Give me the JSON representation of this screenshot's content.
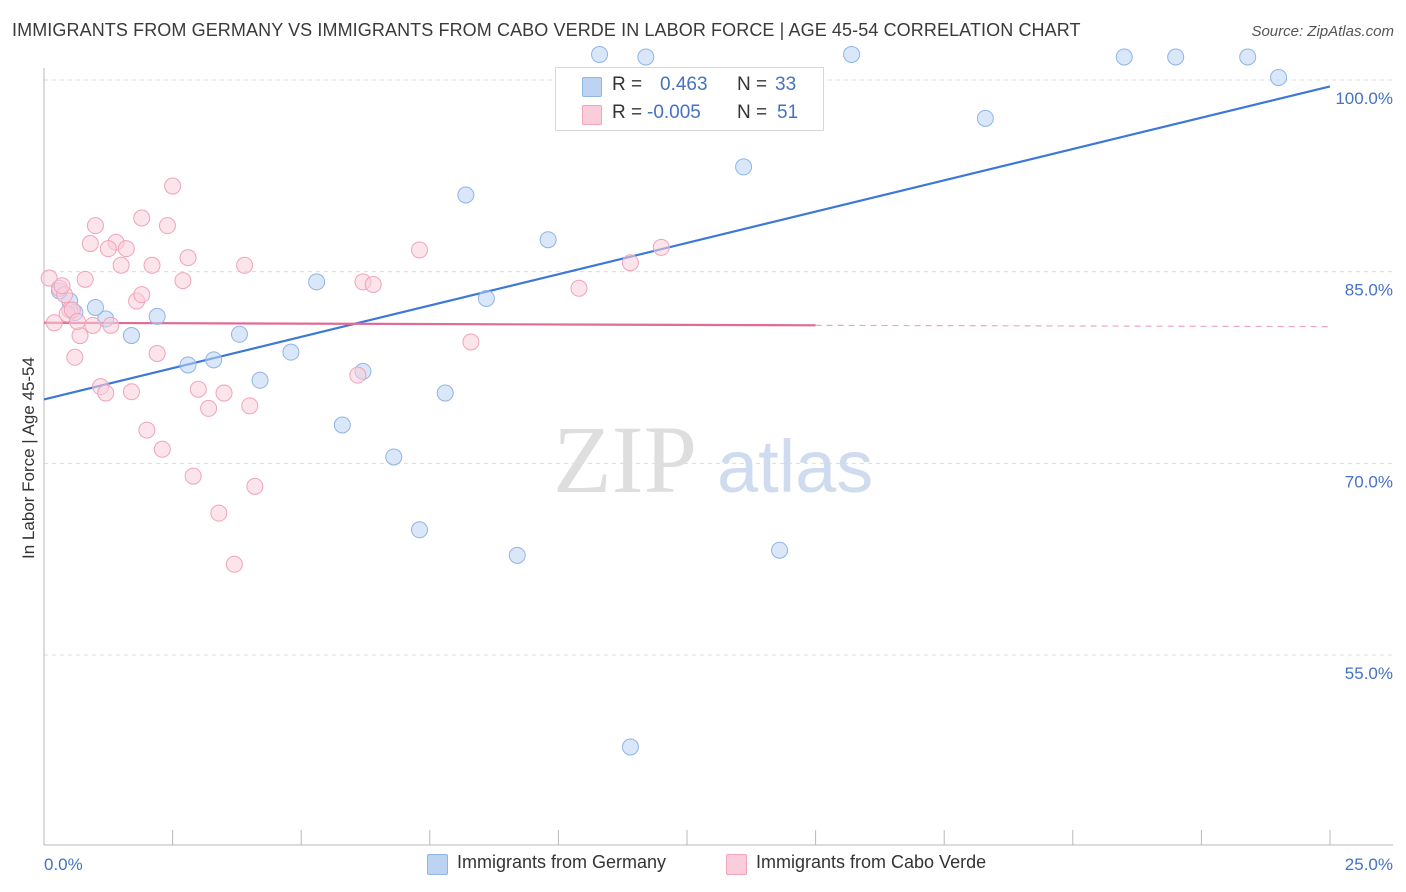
{
  "header": {
    "title": "IMMIGRANTS FROM GERMANY VS IMMIGRANTS FROM CABO VERDE IN LABOR FORCE | AGE 45-54 CORRELATION CHART",
    "source": "Source: ZipAtlas.com"
  },
  "watermark": {
    "zip": "ZIP",
    "atlas": "atlas"
  },
  "legend": {
    "r_label": "R =",
    "n_label": "N =",
    "series": [
      {
        "r_value": "0.463",
        "n_value": "33"
      },
      {
        "r_value": "-0.005",
        "n_value": "51"
      }
    ]
  },
  "chart_data": {
    "type": "scatter",
    "title": "IMMIGRANTS FROM GERMANY VS IMMIGRANTS FROM CABO VERDE IN LABOR FORCE | AGE 45-54 CORRELATION CHART",
    "xlabel": "",
    "ylabel": "In Labor Force | Age 45-54",
    "xlim": [
      0,
      25
    ],
    "ylim": [
      40,
      102
    ],
    "x_tick_labels": [
      "0.0%",
      "25.0%"
    ],
    "y_ticks": [
      55,
      70,
      85,
      100
    ],
    "y_tick_labels": [
      "55.0%",
      "70.0%",
      "85.0%",
      "100.0%"
    ],
    "grid": true,
    "series": [
      {
        "name": "Immigrants from Germany",
        "color": "#8fb4e8",
        "trend": {
          "x": [
            0,
            25
          ],
          "y": [
            75.0,
            99.5
          ],
          "color": "#3b78d8"
        },
        "points": [
          [
            0.5,
            82.7
          ],
          [
            1.2,
            81.3
          ],
          [
            1.7,
            80.0
          ],
          [
            2.2,
            81.5
          ],
          [
            2.8,
            77.7
          ],
          [
            3.3,
            78.1
          ],
          [
            3.8,
            80.1
          ],
          [
            4.2,
            76.5
          ],
          [
            4.8,
            78.7
          ],
          [
            5.3,
            84.2
          ],
          [
            5.8,
            73.0
          ],
          [
            6.2,
            77.2
          ],
          [
            6.8,
            70.5
          ],
          [
            7.3,
            64.8
          ],
          [
            7.8,
            75.5
          ],
          [
            8.2,
            91.0
          ],
          [
            8.6,
            82.9
          ],
          [
            9.2,
            62.8
          ],
          [
            9.8,
            87.5
          ],
          [
            11.4,
            47.8
          ],
          [
            10.8,
            102.0
          ],
          [
            11.7,
            101.8
          ],
          [
            13.6,
            93.2
          ],
          [
            14.3,
            63.2
          ],
          [
            15.7,
            102.0
          ],
          [
            18.3,
            97.0
          ],
          [
            21.0,
            101.8
          ],
          [
            22.0,
            101.8
          ],
          [
            23.4,
            101.8
          ],
          [
            24.0,
            100.2
          ],
          [
            0.3,
            83.5
          ],
          [
            0.6,
            81.8
          ],
          [
            1.0,
            82.2
          ]
        ]
      },
      {
        "name": "Immigrants from Cabo Verde",
        "color": "#f4a6be",
        "trend": {
          "x": [
            0,
            15
          ],
          "y": [
            81.0,
            80.8
          ],
          "dash_x": [
            15,
            25
          ],
          "dash_y": [
            80.8,
            80.7
          ],
          "color": "#e06b93"
        },
        "points": [
          [
            0.1,
            84.5
          ],
          [
            0.3,
            83.7
          ],
          [
            0.4,
            83.2
          ],
          [
            0.5,
            82.0
          ],
          [
            0.6,
            78.3
          ],
          [
            0.7,
            80.0
          ],
          [
            0.8,
            84.4
          ],
          [
            0.9,
            87.2
          ],
          [
            1.0,
            88.6
          ],
          [
            1.1,
            76.0
          ],
          [
            1.2,
            75.5
          ],
          [
            1.3,
            80.8
          ],
          [
            1.4,
            87.3
          ],
          [
            1.5,
            85.5
          ],
          [
            1.6,
            86.8
          ],
          [
            1.7,
            75.6
          ],
          [
            1.8,
            82.7
          ],
          [
            1.9,
            89.2
          ],
          [
            2.0,
            72.6
          ],
          [
            2.1,
            85.5
          ],
          [
            2.2,
            78.6
          ],
          [
            2.3,
            71.1
          ],
          [
            2.4,
            88.6
          ],
          [
            2.5,
            91.7
          ],
          [
            2.7,
            84.3
          ],
          [
            2.8,
            86.1
          ],
          [
            2.9,
            69.0
          ],
          [
            3.0,
            75.8
          ],
          [
            3.2,
            74.3
          ],
          [
            3.4,
            66.1
          ],
          [
            3.5,
            75.5
          ],
          [
            3.7,
            62.1
          ],
          [
            3.9,
            85.5
          ],
          [
            4.0,
            74.5
          ],
          [
            4.1,
            68.2
          ],
          [
            6.1,
            76.9
          ],
          [
            6.2,
            84.2
          ],
          [
            6.4,
            84.0
          ],
          [
            7.3,
            86.7
          ],
          [
            8.3,
            79.5
          ],
          [
            10.4,
            83.7
          ],
          [
            11.4,
            85.7
          ],
          [
            12.0,
            86.9
          ],
          [
            0.2,
            81.0
          ],
          [
            0.35,
            83.9
          ],
          [
            0.45,
            81.7
          ],
          [
            0.55,
            82.0
          ],
          [
            0.65,
            81.1
          ],
          [
            0.95,
            80.8
          ],
          [
            1.25,
            86.8
          ],
          [
            1.9,
            83.2
          ]
        ]
      }
    ]
  },
  "bottom_legend": [
    {
      "label": "Immigrants from Germany"
    },
    {
      "label": "Immigrants from Cabo Verde"
    }
  ],
  "colors": {
    "blue_fill": "#bcd3f2",
    "blue_stroke": "#8fb4e8",
    "pink_fill": "#f9cdda",
    "pink_stroke": "#f0a3bb",
    "blue_line": "#3b78d8",
    "pink_line": "#e06b93",
    "tick_text": "#4472c4"
  }
}
